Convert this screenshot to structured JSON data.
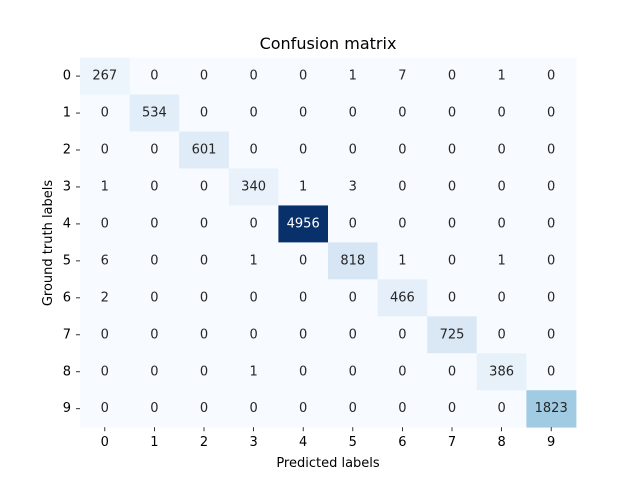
{
  "chart_data": {
    "type": "heatmap",
    "title": "Confusion matrix",
    "xlabel": "Predicted labels",
    "ylabel": "Ground truth labels",
    "x_categories": [
      "0",
      "1",
      "2",
      "3",
      "4",
      "5",
      "6",
      "7",
      "8",
      "9"
    ],
    "y_categories": [
      "0",
      "1",
      "2",
      "3",
      "4",
      "5",
      "6",
      "7",
      "8",
      "9"
    ],
    "values": [
      [
        267,
        0,
        0,
        0,
        0,
        1,
        7,
        0,
        1,
        0
      ],
      [
        0,
        534,
        0,
        0,
        0,
        0,
        0,
        0,
        0,
        0
      ],
      [
        0,
        0,
        601,
        0,
        0,
        0,
        0,
        0,
        0,
        0
      ],
      [
        1,
        0,
        0,
        340,
        1,
        3,
        0,
        0,
        0,
        0
      ],
      [
        0,
        0,
        0,
        0,
        4956,
        0,
        0,
        0,
        0,
        0
      ],
      [
        6,
        0,
        0,
        1,
        0,
        818,
        1,
        0,
        1,
        0
      ],
      [
        2,
        0,
        0,
        0,
        0,
        0,
        466,
        0,
        0,
        0
      ],
      [
        0,
        0,
        0,
        0,
        0,
        0,
        0,
        725,
        0,
        0
      ],
      [
        0,
        0,
        0,
        1,
        0,
        0,
        0,
        0,
        386,
        0
      ],
      [
        0,
        0,
        0,
        0,
        0,
        0,
        0,
        0,
        0,
        1823
      ]
    ],
    "colormap": "Blues",
    "color_range": [
      0,
      4956
    ],
    "colorbar": false,
    "grid": false
  }
}
